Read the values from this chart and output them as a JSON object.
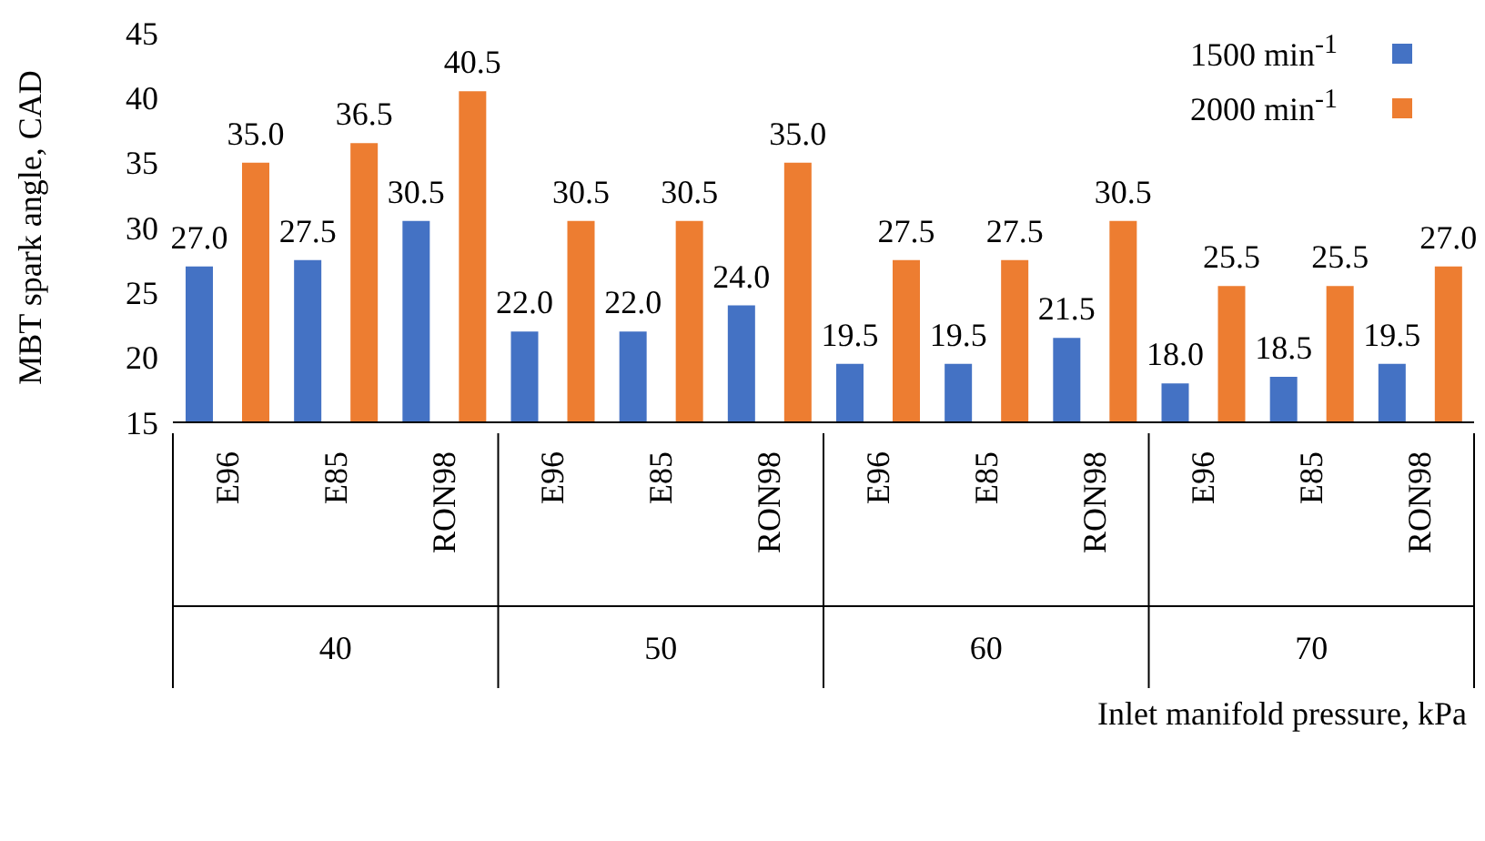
{
  "chart_data": {
    "type": "bar",
    "ylabel": "MBT spark angle, CAD",
    "xlabel": "Inlet manifold pressure, kPa",
    "categories": [
      "E96",
      "E85",
      "RON98",
      "E96",
      "E85",
      "RON98",
      "E96",
      "E85",
      "RON98",
      "E96",
      "E85",
      "RON98"
    ],
    "annotations": [
      "40",
      "50",
      "60",
      "70"
    ],
    "series": [
      {
        "name": "1500 min$^{-1}$",
        "color": "#4472c4",
        "values": [
          27,
          27.5,
          30.5,
          22,
          22,
          24,
          19.5,
          19.5,
          21.5,
          18,
          18.5,
          19.5
        ],
        "value_labels": [
          "27.0",
          "27.5",
          "30.5",
          "22.0",
          "22.0",
          "24.0",
          "19.5",
          "19.5",
          "21.5",
          "18.0",
          "18.5",
          "19.5"
        ]
      },
      {
        "name": "2000 min$^{-1}$",
        "color": "#ed7d31",
        "values": [
          35,
          36.5,
          40.5,
          30.5,
          30.5,
          35,
          27.5,
          27.5,
          30.5,
          25.5,
          25.5,
          27
        ],
        "value_labels": [
          "35.0",
          "36.5",
          "40.5",
          "30.5",
          "30.5",
          "35.0",
          "27.5",
          "27.5",
          "30.5",
          "25.5",
          "25.5",
          "27.0"
        ]
      }
    ],
    "ylim": [
      15,
      45
    ],
    "yticks": [
      15,
      20,
      25,
      30,
      35,
      40,
      45
    ],
    "grid": false,
    "legend": "top right"
  }
}
